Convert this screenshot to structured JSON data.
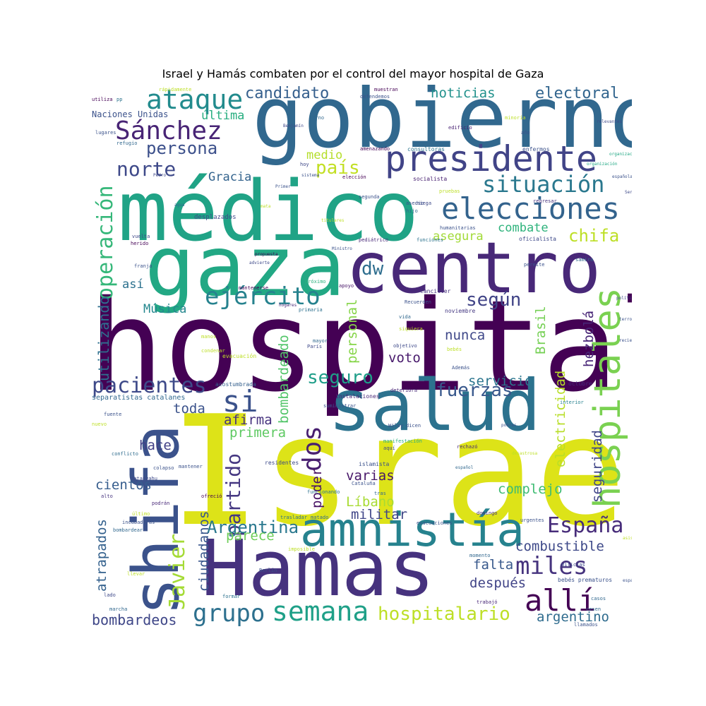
{
  "title": "Israel y Hamás combaten por el control del mayor hospital de Gaza",
  "words": [
    {
      "text": "hospital",
      "color": "#440154"
    },
    {
      "text": "Israel",
      "color": "#dde318"
    },
    {
      "text": "gobierno",
      "color": "#31688e"
    },
    {
      "text": "médico",
      "color": "#20a386"
    },
    {
      "text": "gaza",
      "color": "#22a884"
    },
    {
      "text": "centro",
      "color": "#482878"
    },
    {
      "text": "Hamas",
      "color": "#46327e"
    },
    {
      "text": "salud",
      "color": "#2c728e"
    },
    {
      "text": "shifa",
      "color": "#3b528b"
    },
    {
      "text": "amnistía",
      "color": "#26828e"
    },
    {
      "text": "hospitales",
      "color": "#7ad151"
    },
    {
      "text": "presidente",
      "color": "#414487"
    },
    {
      "text": "elecciones",
      "color": "#33638d"
    },
    {
      "text": "ataque",
      "color": "#228b8d"
    },
    {
      "text": "Sánchez",
      "color": "#482475"
    },
    {
      "text": "situación",
      "color": "#2a788e"
    },
    {
      "text": "operación",
      "color": "#35b779"
    },
    {
      "text": "ejército",
      "color": "#26828e"
    },
    {
      "text": "pacientes",
      "color": "#3e4a89"
    },
    {
      "text": "si",
      "color": "#3b528b"
    },
    {
      "text": "dos",
      "color": "#481f70"
    },
    {
      "text": "semana",
      "color": "#1fa088"
    },
    {
      "text": "grupo",
      "color": "#2d708e"
    },
    {
      "text": "allí",
      "color": "#440154"
    },
    {
      "text": "miles",
      "color": "#46337e"
    },
    {
      "text": "España",
      "color": "#472c7a"
    },
    {
      "text": "hospitalario",
      "color": "#bddf26"
    },
    {
      "text": "Javier",
      "color": "#a5db36"
    },
    {
      "text": "partido",
      "color": "#453781"
    },
    {
      "text": "fuerzas",
      "color": "#38588c"
    },
    {
      "text": "seguro",
      "color": "#1f9e89"
    },
    {
      "text": "país",
      "color": "#c2df23"
    },
    {
      "text": "norte",
      "color": "#3e4989"
    },
    {
      "text": "persona",
      "color": "#3c508b"
    },
    {
      "text": "candidato",
      "color": "#355f8d"
    },
    {
      "text": "electoral",
      "color": "#32658e"
    },
    {
      "text": "noticias",
      "color": "#21918c"
    },
    {
      "text": "chifa",
      "color": "#bddf26"
    },
    {
      "text": "dw",
      "color": "#2e6e8e"
    },
    {
      "text": "según",
      "color": "#414487"
    },
    {
      "text": "Argentina",
      "color": "#2a788e"
    },
    {
      "text": "combustible",
      "color": "#3e4989"
    },
    {
      "text": "argentino",
      "color": "#2f6c8e"
    },
    {
      "text": "bombardeos",
      "color": "#3f4788"
    },
    {
      "text": "después",
      "color": "#414487"
    },
    {
      "text": "falta",
      "color": "#38598c"
    },
    {
      "text": "complejo",
      "color": "#3fbc73"
    },
    {
      "text": "Líbano",
      "color": "#a8db34"
    },
    {
      "text": "varias",
      "color": "#481769"
    },
    {
      "text": "militar",
      "color": "#404688"
    },
    {
      "text": "parece",
      "color": "#6ece58"
    },
    {
      "text": "cientos",
      "color": "#365d8d"
    },
    {
      "text": "hace",
      "color": "#424086"
    },
    {
      "text": "afirma",
      "color": "#46327e"
    },
    {
      "text": "primera",
      "color": "#5ec962"
    },
    {
      "text": "toda",
      "color": "#3b528b"
    },
    {
      "text": "servicio",
      "color": "#2b758e"
    },
    {
      "text": "voto",
      "color": "#481a6c"
    },
    {
      "text": "nunca",
      "color": "#3f4889"
    },
    {
      "text": "Música",
      "color": "#24878e"
    },
    {
      "text": "así",
      "color": "#2c718e"
    },
    {
      "text": "Gracia",
      "color": "#33638d"
    },
    {
      "text": "medio",
      "color": "#b5de2b"
    },
    {
      "text": "última",
      "color": "#28ae80"
    },
    {
      "text": "combate",
      "color": "#2eb37c"
    },
    {
      "text": "asegura",
      "color": "#a2da37"
    },
    {
      "text": "utilizando",
      "color": "#2e6f8e"
    },
    {
      "text": "bombardeado",
      "color": "#52c569"
    },
    {
      "text": "personal",
      "color": "#86d549"
    },
    {
      "text": "hezbolá",
      "color": "#482677"
    },
    {
      "text": "Brasil",
      "color": "#75d054"
    },
    {
      "text": "electricidad",
      "color": "#b8de29"
    },
    {
      "text": "seguridad",
      "color": "#404588"
    },
    {
      "text": "poder",
      "color": "#471063"
    },
    {
      "text": "ciudadanos",
      "color": "#39568c"
    },
    {
      "text": "atrapados",
      "color": "#34618d"
    },
    {
      "text": "Naciones Unidas",
      "color": "#3b528b"
    },
    {
      "text": "desplazados",
      "color": "#3e4989"
    },
    {
      "text": "separatistas catalanes",
      "color": "#31688e"
    },
    {
      "text": "acostumbrada",
      "color": "#35608d"
    },
    {
      "text": "evacuación",
      "color": "#bddf26"
    },
    {
      "text": "instalaciones",
      "color": "#482878"
    },
    {
      "text": "residentes",
      "color": "#3e4a89"
    },
    {
      "text": "manifestación",
      "color": "#29af7f"
    },
    {
      "text": "islamista",
      "color": "#3b528b"
    },
    {
      "text": "noviembre",
      "color": "#453882"
    },
    {
      "text": "canciller",
      "color": "#46307e"
    },
    {
      "text": "Recuerden",
      "color": "#3b528b"
    },
    {
      "text": "primaria",
      "color": "#2d708e"
    },
    {
      "text": "apoyo",
      "color": "#481668"
    },
    {
      "text": "próximo",
      "color": "#2cb17e"
    },
    {
      "text": "mantenerse",
      "color": "#440154"
    },
    {
      "text": "socialista",
      "color": "#482071"
    },
    {
      "text": "consultoras",
      "color": "#2b758e"
    },
    {
      "text": "enfermos",
      "color": "#3b528b"
    },
    {
      "text": "edificio",
      "color": "#482173"
    },
    {
      "text": "oficialista",
      "color": "#3e4989"
    },
    {
      "text": "humanitarias",
      "color": "#3b528b"
    },
    {
      "text": "regresar",
      "color": "#46337e"
    },
    {
      "text": "niega",
      "color": "#3e4a89"
    },
    {
      "text": "hijo",
      "color": "#31688e"
    },
    {
      "text": "asedio",
      "color": "#3c4f8a"
    },
    {
      "text": "pediátrico",
      "color": "#482878"
    },
    {
      "text": "funciones",
      "color": "#2c728e"
    },
    {
      "text": "segunda",
      "color": "#3b528b"
    },
    {
      "text": "elección",
      "color": "#440154"
    },
    {
      "text": "hoy",
      "color": "#3f4788"
    },
    {
      "text": "octubre",
      "color": "#472a7a"
    },
    {
      "text": "interior",
      "color": "#26818e"
    },
    {
      "text": "fuente",
      "color": "#3b528b"
    },
    {
      "text": "conflicto",
      "color": "#2f6c8e"
    },
    {
      "text": "netanyahu",
      "color": "#3e4a89"
    },
    {
      "text": "mantener",
      "color": "#3b528b"
    },
    {
      "text": "ofreció",
      "color": "#440154"
    },
    {
      "text": "alto",
      "color": "#46327e"
    },
    {
      "text": "incubadoras",
      "color": "#3b528b"
    },
    {
      "text": "bombardear",
      "color": "#31688e"
    },
    {
      "text": "llevar",
      "color": "#bddf26"
    },
    {
      "text": "lado",
      "color": "#3e4989"
    },
    {
      "text": "marcha",
      "color": "#31688e"
    },
    {
      "text": "formar",
      "color": "#2c728e"
    },
    {
      "text": "trabajó",
      "color": "#482878"
    },
    {
      "text": "Berlín",
      "color": "#3b528b"
    },
    {
      "text": "imposible",
      "color": "#bddf26"
    },
    {
      "text": "matado",
      "color": "#31688e"
    },
    {
      "text": "trasladar",
      "color": "#2d708e"
    },
    {
      "text": "evacuaciones",
      "color": "#3b528b"
    },
    {
      "text": "momento",
      "color": "#31688e"
    },
    {
      "text": "domingo",
      "color": "#46327e"
    },
    {
      "text": "urgentes",
      "color": "#3b528b"
    },
    {
      "text": "milicias",
      "color": "#3e4989"
    },
    {
      "text": "bebés prematuros",
      "color": "#3b528b"
    },
    {
      "text": "casos",
      "color": "#31688e"
    },
    {
      "text": "aquí",
      "color": "#3e4989"
    },
    {
      "text": "rechazó",
      "color": "#482878"
    },
    {
      "text": "Cataluña",
      "color": "#3b528b"
    },
    {
      "text": "tras",
      "color": "#31688e"
    },
    {
      "text": "funcionando",
      "color": "#2c728e"
    },
    {
      "text": "Además",
      "color": "#3b528b"
    },
    {
      "text": "bebés",
      "color": "#bddf26"
    },
    {
      "text": "objetivo",
      "color": "#3e4989"
    },
    {
      "text": "siquiera",
      "color": "#bddf26"
    },
    {
      "text": "vida",
      "color": "#31688e"
    },
    {
      "text": "deteriora",
      "color": "#482878"
    },
    {
      "text": "suministrar",
      "color": "#3b528b"
    },
    {
      "text": "mayor",
      "color": "#31688e"
    },
    {
      "text": "París",
      "color": "#3e4989"
    },
    {
      "text": "manos",
      "color": "#bddf26"
    },
    {
      "text": "condenar",
      "color": "#bddf26"
    },
    {
      "text": "franja",
      "color": "#3b528b"
    },
    {
      "text": "vuelta",
      "color": "#3e4989"
    },
    {
      "text": "herido",
      "color": "#440154"
    },
    {
      "text": "refugio",
      "color": "#31688e"
    },
    {
      "text": "lugares",
      "color": "#3b528b"
    },
    {
      "text": "utiliza",
      "color": "#440154"
    },
    {
      "text": "pp",
      "color": "#2c728e"
    },
    {
      "text": "rápidamente",
      "color": "#bddf26"
    },
    {
      "text": "muestran",
      "color": "#440154"
    },
    {
      "text": "defendemos",
      "color": "#3b528b"
    },
    {
      "text": "torno",
      "color": "#31688e"
    },
    {
      "text": "minoría",
      "color": "#bddf26"
    },
    {
      "text": "año",
      "color": "#3b528b"
    },
    {
      "text": "amenazando",
      "color": "#440154"
    },
    {
      "text": "pruebas",
      "color": "#bddf26"
    },
    {
      "text": "samira",
      "color": "#31688e"
    },
    {
      "text": "pereíte",
      "color": "#3b528b"
    },
    {
      "text": "cesen",
      "color": "#31688e"
    },
    {
      "text": "llamados",
      "color": "#3b528b"
    },
    {
      "text": "nuevo",
      "color": "#bddf26"
    },
    {
      "text": "colapso",
      "color": "#3b528b"
    },
    {
      "text": "podrán",
      "color": "#482878"
    },
    {
      "text": "último",
      "color": "#bddf26"
    },
    {
      "text": "dicen",
      "color": "#3b528b"
    },
    {
      "text": "Wiley",
      "color": "#3b528b"
    },
    {
      "text": "Pedro",
      "color": "#3e4989"
    },
    {
      "text": "agua",
      "color": "#31688e"
    },
    {
      "text": "mata",
      "color": "#bddf26"
    },
    {
      "text": "Primer",
      "color": "#3b528b"
    },
    {
      "text": "Benjamín",
      "color": "#3e4989"
    },
    {
      "text": "sistema",
      "color": "#3b528b"
    },
    {
      "text": "titulares",
      "color": "#bddf26"
    },
    {
      "text": "Ministro",
      "color": "#3b528b"
    },
    {
      "text": "propuesta",
      "color": "#440154"
    },
    {
      "text": "advierte",
      "color": "#3e4989"
    },
    {
      "text": "hogares",
      "color": "#482878"
    },
    {
      "text": "organización",
      "color": "#22a884"
    },
    {
      "text": "organizaciones",
      "color": "#22a884"
    },
    {
      "text": "española",
      "color": "#3b528b"
    },
    {
      "text": "política",
      "color": "#3e4989"
    },
    {
      "text": "terrorista",
      "color": "#3b528b"
    },
    {
      "text": "reciente",
      "color": "#3b528b"
    },
    {
      "text": "Sergio",
      "color": "#3e4989"
    },
    {
      "text": "asisten",
      "color": "#bddf26"
    },
    {
      "text": "españoles",
      "color": "#3b528b"
    },
    {
      "text": "relevantes",
      "color": "#3e4989"
    },
    {
      "text": "pobres",
      "color": "#3b528b"
    },
    {
      "text": "desastrosa",
      "color": "#bddf26"
    },
    {
      "text": "español",
      "color": "#31688e"
    }
  ]
}
